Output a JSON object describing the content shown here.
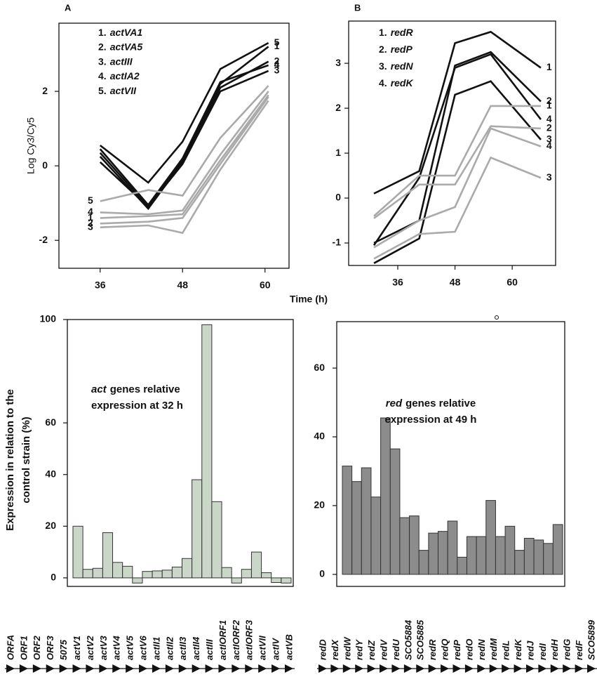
{
  "chart_data": [
    {
      "type": "line",
      "panel": "A",
      "ylabel": "Log Cy3/Cy5",
      "xlabel": "Time (h)",
      "x": [
        36,
        43,
        48,
        53.5,
        60.5
      ],
      "xlim": [
        30,
        63.5
      ],
      "xticks": [
        36,
        48,
        60
      ],
      "ylim": [
        -2.75,
        3.83
      ],
      "yticks": [
        -2,
        0,
        2
      ],
      "legend": [
        {
          "number": "1.",
          "name": "actVA1"
        },
        {
          "number": "2.",
          "name": "actVA5"
        },
        {
          "number": "3.",
          "name": "actIII"
        },
        {
          "number": "4.",
          "name": "actIA2"
        },
        {
          "number": "5.",
          "name": "actVII"
        }
      ],
      "series": [
        {
          "label": "1",
          "color": "#111111",
          "label_side": "end",
          "values": [
            0.35,
            -1.1,
            0.15,
            2.2,
            3.2
          ]
        },
        {
          "label": "2",
          "color": "#111111",
          "label_side": "end",
          "values": [
            0.25,
            -1.15,
            0.1,
            2.1,
            2.8
          ]
        },
        {
          "label": "3",
          "color": "#111111",
          "label_side": "end",
          "values": [
            0.1,
            -1.1,
            0.05,
            2.0,
            2.55
          ]
        },
        {
          "label": "4",
          "color": "#111111",
          "label_side": "end",
          "values": [
            0.45,
            -1.05,
            0.2,
            2.25,
            2.7
          ]
        },
        {
          "label": "5",
          "color": "#111111",
          "label_side": "end",
          "values": [
            0.55,
            -0.45,
            0.65,
            2.6,
            3.3
          ]
        },
        {
          "label": "5",
          "color": "#aaaaaa",
          "label_side": "start",
          "values": [
            -0.95,
            -0.65,
            -0.8,
            0.75,
            2.15
          ]
        },
        {
          "label": "4",
          "color": "#aaaaaa",
          "label_side": "start",
          "values": [
            -1.25,
            -1.3,
            -1.2,
            0.3,
            2.0
          ]
        },
        {
          "label": "1",
          "color": "#aaaaaa",
          "label_side": "start",
          "values": [
            -1.4,
            -1.35,
            -1.3,
            0.15,
            1.9
          ]
        },
        {
          "label": "2",
          "color": "#aaaaaa",
          "label_side": "start",
          "values": [
            -1.55,
            -1.5,
            -1.4,
            0.05,
            1.85
          ]
        },
        {
          "label": "3",
          "color": "#aaaaaa",
          "label_side": "start",
          "values": [
            -1.65,
            -1.6,
            -1.8,
            -0.1,
            1.75
          ]
        }
      ]
    },
    {
      "type": "line",
      "panel": "B",
      "x": [
        31,
        40.5,
        48,
        55.5,
        66
      ],
      "xlim": [
        25.7,
        69.1
      ],
      "xticks": [
        36,
        48,
        60
      ],
      "ylim": [
        -1.5,
        3.94
      ],
      "yticks": [
        -1,
        0,
        1,
        2,
        3
      ],
      "legend": [
        {
          "number": "1.",
          "name": "redR"
        },
        {
          "number": "2.",
          "name": "redP"
        },
        {
          "number": "3.",
          "name": "redN"
        },
        {
          "number": "4.",
          "name": "redK"
        }
      ],
      "series": [
        {
          "label": "1",
          "color": "#111111",
          "label_side": "end",
          "values": [
            0.1,
            0.6,
            3.45,
            3.7,
            2.9
          ]
        },
        {
          "label": "2",
          "color": "#111111",
          "label_side": "end",
          "values": [
            -1.0,
            -0.5,
            2.95,
            3.25,
            2.15
          ]
        },
        {
          "label": "3",
          "color": "#111111",
          "label_side": "end",
          "values": [
            -1.45,
            -0.9,
            2.3,
            2.6,
            1.3
          ]
        },
        {
          "label": "4",
          "color": "#111111",
          "label_side": "end",
          "values": [
            -1.05,
            0.45,
            2.9,
            3.2,
            1.75
          ]
        },
        {
          "label": "1",
          "color": "#aaaaaa",
          "label_side": "end",
          "values": [
            -0.4,
            0.5,
            0.5,
            2.05,
            2.05
          ]
        },
        {
          "label": "2",
          "color": "#aaaaaa",
          "label_side": "end",
          "values": [
            -0.45,
            0.3,
            0.3,
            1.6,
            1.55
          ]
        },
        {
          "label": "4",
          "color": "#aaaaaa",
          "label_side": "end",
          "values": [
            -1.1,
            -0.5,
            -0.2,
            1.55,
            1.15
          ]
        },
        {
          "label": "3",
          "color": "#aaaaaa",
          "label_side": "end",
          "values": [
            -1.35,
            -0.8,
            -0.75,
            0.9,
            0.45
          ]
        }
      ]
    },
    {
      "type": "bar",
      "ylabel": [
        "Expression  in relation to the",
        "control strain (%)"
      ],
      "annotation": {
        "emphasis": "act",
        "rest": "genes relative",
        "line2": "expression at 32 h"
      },
      "categories": [
        "ORFA",
        "ORF1",
        "ORF2",
        "ORF3",
        "5075",
        "actV1",
        "actV2",
        "actV3",
        "actV4",
        "actV5",
        "actV6",
        "actII1",
        "actII2",
        "actII3",
        "actII4",
        "actIII",
        "actIORF1",
        "actIORF2",
        "actIORF3",
        "actVII",
        "actIV",
        "actVB"
      ],
      "values": [
        20,
        3.3,
        3.7,
        17.5,
        6,
        4.5,
        -2,
        2.5,
        2.7,
        3,
        4.2,
        7.5,
        38,
        98,
        29.5,
        4,
        -2,
        3.3,
        10,
        2,
        -1.8,
        -2
      ],
      "color": "#c9d6c8",
      "ylim": [
        -3.3,
        100
      ],
      "yticks": [
        0,
        20,
        40,
        60,
        100
      ]
    },
    {
      "type": "bar",
      "annotation": {
        "emphasis": "red",
        "rest": "genes relative",
        "line2": "expression at 49 h"
      },
      "categories": [
        "redD",
        "redX",
        "redW",
        "redY",
        "redZ",
        "redV",
        "redU",
        "SCO5884",
        "SCO5885",
        "redR",
        "redQ",
        "redP",
        "redO",
        "redN",
        "redM",
        "redL",
        "redK",
        "redJ",
        "redI",
        "redH",
        "redG",
        "redF",
        "SCO5899"
      ],
      "values": [
        31.5,
        27,
        31,
        22.5,
        45.5,
        36.5,
        16.5,
        17,
        7,
        12,
        12.5,
        15.5,
        5,
        11,
        11,
        21.5,
        11,
        14,
        7,
        10.5,
        10,
        9,
        14.5
      ],
      "color": "#8c8c8c",
      "ylim": [
        -3.5,
        73.5
      ],
      "yticks": [
        0,
        20,
        40,
        60
      ]
    }
  ]
}
